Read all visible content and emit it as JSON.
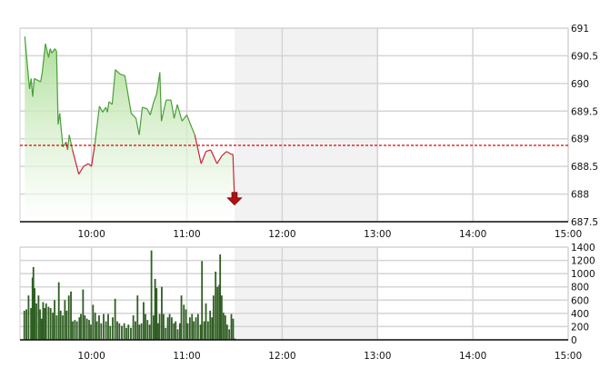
{
  "colors": {
    "up": "#4a9e3a",
    "down": "#cc2233",
    "fill": "#a8dc90",
    "reference": "#e00000",
    "volume": "#2f5e22",
    "break": "#f2f2f2",
    "grid": "#d4d4d4"
  },
  "chart_data": [
    {
      "type": "area",
      "x_ticks": [
        "10:00",
        "11:00",
        "12:00",
        "13:00",
        "14:00",
        "15:00"
      ],
      "xlim": [
        "9:15",
        "15:00"
      ],
      "break": [
        "11:30",
        "13:00"
      ],
      "y_ticks": [
        "687.5",
        "688",
        "688.5",
        "689",
        "689.5",
        "690",
        "690.5",
        "691"
      ],
      "ylim": [
        687.5,
        691
      ],
      "reference": 688.88,
      "grid": true,
      "last_marker": "down-arrow",
      "series": [
        {
          "points": [
            [
              "9:18",
              690.85
            ],
            [
              "9:21",
              689.9
            ],
            [
              "9:22",
              690.09
            ],
            [
              "9:23",
              689.76
            ],
            [
              "9:24",
              690.09
            ],
            [
              "9:28",
              690.03
            ],
            [
              "9:29",
              690.2
            ],
            [
              "9:31",
              690.72
            ],
            [
              "9:33",
              690.47
            ],
            [
              "9:34",
              690.63
            ],
            [
              "9:35",
              690.55
            ],
            [
              "9:37",
              690.63
            ],
            [
              "9:38",
              690.58
            ],
            [
              "9:39",
              689.26
            ],
            [
              "9:40",
              689.46
            ],
            [
              "9:42",
              688.85
            ],
            [
              "9:44",
              688.94
            ],
            [
              "9:45",
              688.8
            ],
            [
              "9:46",
              689.07
            ],
            [
              "9:48",
              688.8
            ],
            [
              "9:52",
              688.36
            ],
            [
              "9:55",
              688.5
            ],
            [
              "9:58",
              688.55
            ],
            [
              "10:00",
              688.5
            ],
            [
              "10:02",
              688.88
            ],
            [
              "10:05",
              689.59
            ],
            [
              "10:07",
              689.48
            ],
            [
              "10:09",
              689.57
            ],
            [
              "10:10",
              689.48
            ],
            [
              "10:11",
              689.67
            ],
            [
              "10:13",
              689.62
            ],
            [
              "10:15",
              690.25
            ],
            [
              "10:18",
              690.17
            ],
            [
              "10:21",
              690.14
            ],
            [
              "10:25",
              689.46
            ],
            [
              "10:28",
              689.37
            ],
            [
              "10:30",
              689.07
            ],
            [
              "10:32",
              689.57
            ],
            [
              "10:35",
              689.54
            ],
            [
              "10:37",
              689.43
            ],
            [
              "10:39",
              689.65
            ],
            [
              "10:41",
              689.81
            ],
            [
              "10:43",
              690.2
            ],
            [
              "10:44",
              689.32
            ],
            [
              "10:47",
              689.7
            ],
            [
              "10:50",
              689.7
            ],
            [
              "10:52",
              689.37
            ],
            [
              "10:54",
              689.62
            ],
            [
              "10:57",
              689.32
            ],
            [
              "11:00",
              689.43
            ],
            [
              "11:03",
              689.21
            ],
            [
              "11:05",
              689.07
            ],
            [
              "11:09",
              688.55
            ],
            [
              "11:12",
              688.77
            ],
            [
              "11:15",
              688.8
            ],
            [
              "11:19",
              688.55
            ],
            [
              "11:22",
              688.69
            ],
            [
              "11:25",
              688.77
            ],
            [
              "11:28",
              688.72
            ],
            [
              "11:29",
              688.72
            ],
            [
              "11:30",
              687.9
            ]
          ]
        }
      ]
    },
    {
      "type": "bar",
      "x_ticks": [
        "10:00",
        "11:00",
        "12:00",
        "13:00",
        "14:00",
        "15:00"
      ],
      "xlim": [
        "9:15",
        "15:00"
      ],
      "break": [
        "11:30",
        "13:00"
      ],
      "y_ticks": [
        "0",
        "200",
        "400",
        "600",
        "800",
        "1000",
        "1200",
        "1400"
      ],
      "ylim": [
        0,
        1400
      ],
      "grid": true,
      "bars": [
        [
          "9:17:43",
          440
        ],
        [
          "9:19:03",
          460
        ],
        [
          "9:20:23",
          670
        ],
        [
          "9:21:55",
          480
        ],
        [
          "9:22:52",
          940
        ],
        [
          "9:23:26",
          1100
        ],
        [
          "9:24:12",
          780
        ],
        [
          "9:25:20",
          550
        ],
        [
          "9:26:40",
          670
        ],
        [
          "9:27:37",
          460
        ],
        [
          "9:28:35",
          320
        ],
        [
          "9:29:32",
          570
        ],
        [
          "9:30:29",
          480
        ],
        [
          "9:31:26",
          550
        ],
        [
          "9:32:58",
          500
        ],
        [
          "9:34:17",
          480
        ],
        [
          "9:35:38",
          410
        ],
        [
          "9:36:46",
          600
        ],
        [
          "9:38:06",
          370
        ],
        [
          "9:39:26",
          870
        ],
        [
          "9:40:35",
          440
        ],
        [
          "9:41:55",
          370
        ],
        [
          "9:43:15",
          600
        ],
        [
          "9:44:23",
          440
        ],
        [
          "9:45:43",
          670
        ],
        [
          "9:47:04",
          730
        ],
        [
          "9:48:12",
          280
        ],
        [
          "9:49:32",
          300
        ],
        [
          "9:50:52",
          280
        ],
        [
          "9:52:23",
          340
        ],
        [
          "9:53:20",
          390
        ],
        [
          "9:54:41",
          760
        ],
        [
          "9:55:49",
          370
        ],
        [
          "9:57:09",
          320
        ],
        [
          "9:58:29",
          300
        ],
        [
          "9:59:38",
          230
        ],
        [
          "10:00:58",
          530
        ],
        [
          "10:02:18",
          410
        ],
        [
          "10:03:26",
          280
        ],
        [
          "10:04:46",
          370
        ],
        [
          "10:06:07",
          250
        ],
        [
          "10:07:38",
          390
        ],
        [
          "10:09:09",
          280
        ],
        [
          "10:10:29",
          390
        ],
        [
          "10:11:49",
          210
        ],
        [
          "10:13:21",
          340
        ],
        [
          "10:14:52",
          620
        ],
        [
          "10:16:12",
          280
        ],
        [
          "10:17:32",
          250
        ],
        [
          "10:19:04",
          210
        ],
        [
          "10:20:35",
          250
        ],
        [
          "10:21:55",
          180
        ],
        [
          "10:23:15",
          230
        ],
        [
          "10:24:47",
          180
        ],
        [
          "10:26:18",
          370
        ],
        [
          "10:27:38",
          280
        ],
        [
          "10:28:58",
          670
        ],
        [
          "10:30:07",
          230
        ],
        [
          "10:31:26",
          250
        ],
        [
          "10:32:47",
          570
        ],
        [
          "10:33:55",
          390
        ],
        [
          "10:35:15",
          300
        ],
        [
          "10:36:35",
          230
        ],
        [
          "10:37:44",
          1350
        ],
        [
          "10:39:04",
          370
        ],
        [
          "10:40:01",
          920
        ],
        [
          "10:40:58",
          780
        ],
        [
          "10:41:55",
          250
        ],
        [
          "10:42:52",
          390
        ],
        [
          "10:44:13",
          800
        ],
        [
          "10:45:21",
          390
        ],
        [
          "10:46:41",
          180
        ],
        [
          "10:48:01",
          340
        ],
        [
          "10:49:10",
          390
        ],
        [
          "10:50:29",
          340
        ],
        [
          "10:51:50",
          250
        ],
        [
          "10:52:58",
          280
        ],
        [
          "10:54:18",
          160
        ],
        [
          "10:55:38",
          250
        ],
        [
          "10:56:35",
          670
        ],
        [
          "10:58:07",
          530
        ],
        [
          "10:59:27",
          460
        ],
        [
          "11:00:35",
          250
        ],
        [
          "11:01:55",
          340
        ],
        [
          "11:03:16",
          390
        ],
        [
          "11:04:24",
          280
        ],
        [
          "11:05:44",
          340
        ],
        [
          "11:07:04",
          390
        ],
        [
          "11:08:35",
          230
        ],
        [
          "11:09:32",
          1190
        ],
        [
          "11:10:53",
          280
        ],
        [
          "11:12:01",
          550
        ],
        [
          "11:13:21",
          280
        ],
        [
          "11:14:41",
          440
        ],
        [
          "11:15:50",
          340
        ],
        [
          "11:16:47",
          670
        ],
        [
          "11:18:07",
          1030
        ],
        [
          "11:19:16",
          800
        ],
        [
          "11:20:24",
          830
        ],
        [
          "11:20:58",
          1290
        ],
        [
          "11:21:56",
          670
        ],
        [
          "11:23:04",
          410
        ],
        [
          "11:24:13",
          370
        ],
        [
          "11:25:21",
          230
        ],
        [
          "11:26:41",
          160
        ],
        [
          "11:28:01",
          390
        ],
        [
          "11:29:10",
          320
        ],
        [
          "11:30:07",
          20
        ]
      ]
    }
  ]
}
